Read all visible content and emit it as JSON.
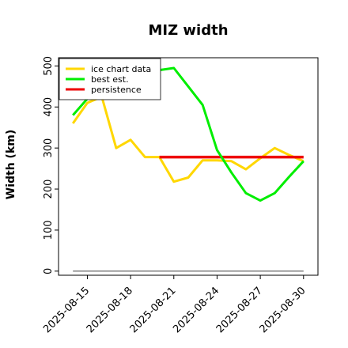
{
  "chart_data": {
    "type": "line",
    "title": "MIZ width",
    "xlabel": "",
    "ylabel": "Width (km)",
    "xlim": [
      "2025-08-13",
      "2025-08-31"
    ],
    "ylim": [
      -10,
      520
    ],
    "x_ticks": [
      "2025-08-15",
      "2025-08-18",
      "2025-08-21",
      "2025-08-24",
      "2025-08-27",
      "2025-08-30"
    ],
    "y_ticks": [
      0,
      100,
      200,
      300,
      400,
      500
    ],
    "grid": false,
    "legend_position": "top-left",
    "series": [
      {
        "name": "ice chart data",
        "color": "#FFD700",
        "x": [
          "2025-08-14",
          "2025-08-15",
          "2025-08-16",
          "2025-08-17",
          "2025-08-18",
          "2025-08-19",
          "2025-08-20",
          "2025-08-21",
          "2025-08-22",
          "2025-08-23",
          "2025-08-24",
          "2025-08-25",
          "2025-08-26",
          "2025-08-27",
          "2025-08-28",
          "2025-08-29",
          "2025-08-30"
        ],
        "values": [
          360,
          410,
          425,
          300,
          320,
          278,
          278,
          218,
          228,
          270,
          270,
          268,
          248,
          275,
          300,
          283,
          268
        ]
      },
      {
        "name": "best est.",
        "color": "#00EE00",
        "x": [
          "2025-08-14",
          "2025-08-15",
          "2025-08-16",
          "2025-08-17",
          "2025-08-18",
          "2025-08-19",
          "2025-08-20",
          "2025-08-21",
          "2025-08-22",
          "2025-08-23",
          "2025-08-24",
          "2025-08-25",
          "2025-08-26",
          "2025-08-27",
          "2025-08-28",
          "2025-08-29",
          "2025-08-30"
        ],
        "values": [
          380,
          420,
          450,
          470,
          480,
          488,
          490,
          495,
          450,
          405,
          295,
          240,
          190,
          172,
          190,
          230,
          268
        ]
      },
      {
        "name": "persistence",
        "color": "#EE0000",
        "x": [
          "2025-08-20",
          "2025-08-30"
        ],
        "values": [
          278,
          278
        ]
      },
      {
        "name": "",
        "color": "#808080",
        "x": [
          "2025-08-14",
          "2025-08-30"
        ],
        "values": [
          0,
          0
        ]
      }
    ]
  }
}
